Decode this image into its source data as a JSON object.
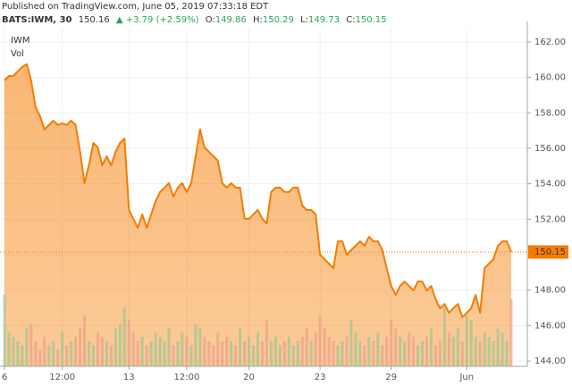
{
  "header": {
    "published": "Published on TradingView.com, June 05, 2019 07:33:18 EDT",
    "symbol": "BATS:IWM, 30",
    "last": "150.16",
    "change": "▲ +3.79 (+2.59%)",
    "open_label": "O:",
    "open": "149.86",
    "high_label": "H:",
    "high": "150.29",
    "low_label": "L:",
    "low": "149.73",
    "close_label": "C:",
    "close": "150.15"
  },
  "chart_data": {
    "type": "area",
    "categories": [
      "6",
      null,
      null,
      null,
      null,
      null,
      null,
      null,
      null,
      null,
      null,
      null,
      null,
      "12:00",
      null,
      null,
      null,
      null,
      null,
      null,
      null,
      null,
      null,
      null,
      null,
      null,
      null,
      null,
      "13",
      null,
      null,
      null,
      null,
      null,
      null,
      null,
      null,
      null,
      null,
      null,
      null,
      "12:00",
      null,
      null,
      null,
      null,
      null,
      null,
      null,
      null,
      null,
      null,
      null,
      null,
      null,
      "20",
      null,
      null,
      null,
      null,
      null,
      null,
      null,
      null,
      null,
      null,
      null,
      null,
      null,
      null,
      null,
      "23",
      null,
      null,
      null,
      null,
      null,
      null,
      null,
      null,
      null,
      null,
      null,
      null,
      null,
      null,
      null,
      "29",
      null,
      null,
      null,
      null,
      null,
      null,
      null,
      null,
      null,
      null,
      null,
      null,
      null,
      null,
      null,
      null,
      "Jun",
      null,
      null,
      null,
      null,
      null,
      null,
      null,
      null,
      null,
      null
    ],
    "series": [
      {
        "name": "IWM",
        "color": "#f57c00",
        "values": [
          159.83,
          160.08,
          160.08,
          160.34,
          160.59,
          160.74,
          159.83,
          158.32,
          157.81,
          157.06,
          157.31,
          157.56,
          157.31,
          157.41,
          157.31,
          157.56,
          157.31,
          155.8,
          154.03,
          155.04,
          156.3,
          156.05,
          155.04,
          155.55,
          155.04,
          155.8,
          156.3,
          156.55,
          152.52,
          152.02,
          151.51,
          152.27,
          151.51,
          152.27,
          153.02,
          153.53,
          153.78,
          154.03,
          153.28,
          153.78,
          154.03,
          153.53,
          154.03,
          155.55,
          157.06,
          156.05,
          155.8,
          155.55,
          155.3,
          154.03,
          153.78,
          154.03,
          153.78,
          153.78,
          152.02,
          152.02,
          152.27,
          152.52,
          152.02,
          151.76,
          153.53,
          153.78,
          153.78,
          153.53,
          153.53,
          153.78,
          153.78,
          152.77,
          152.52,
          152.52,
          152.27,
          150.0,
          149.75,
          149.49,
          149.24,
          150.75,
          150.75,
          150.0,
          150.25,
          150.5,
          150.75,
          150.5,
          151.01,
          150.75,
          150.75,
          150.25,
          149.24,
          148.23,
          147.73,
          148.23,
          148.49,
          148.23,
          147.98,
          148.49,
          148.49,
          147.98,
          148.23,
          147.48,
          146.97,
          147.22,
          146.72,
          146.97,
          147.22,
          146.47,
          146.72,
          146.97,
          147.73,
          146.72,
          149.24,
          149.49,
          149.75,
          150.5,
          150.75,
          150.75,
          150.15
        ]
      },
      {
        "name": "Vol",
        "axis": "y2",
        "up_color": "#8fc48f",
        "down_color": "#ea9a86",
        "values": [
          85,
          40,
          35,
          30,
          25,
          45,
          50,
          30,
          20,
          35,
          25,
          30,
          20,
          40,
          25,
          30,
          35,
          45,
          60,
          30,
          25,
          40,
          35,
          30,
          25,
          45,
          50,
          70,
          55,
          40,
          30,
          35,
          25,
          30,
          40,
          35,
          30,
          45,
          25,
          30,
          40,
          35,
          25,
          50,
          45,
          35,
          30,
          25,
          40,
          30,
          35,
          30,
          25,
          45,
          30,
          35,
          25,
          40,
          30,
          55,
          30,
          35,
          25,
          30,
          35,
          25,
          30,
          35,
          45,
          30,
          40,
          60,
          45,
          35,
          30,
          25,
          30,
          35,
          55,
          40,
          30,
          25,
          35,
          30,
          40,
          25,
          35,
          55,
          45,
          35,
          30,
          40,
          35,
          25,
          30,
          35,
          45,
          25,
          30,
          70,
          40,
          35,
          45,
          30,
          60,
          55,
          35,
          30,
          40,
          35,
          30,
          45,
          40,
          30,
          80
        ]
      }
    ],
    "ylim": [
      143.7,
      162.75
    ],
    "yticks": [
      {
        "value": 144,
        "label": "144.00"
      },
      {
        "value": 146,
        "label": "146.00"
      },
      {
        "value": 148,
        "label": "148.00"
      },
      {
        "value": 150,
        "label": "150.00"
      },
      {
        "value": 152,
        "label": "152.00"
      },
      {
        "value": 154,
        "label": "154.00"
      },
      {
        "value": 156,
        "label": "156.00"
      },
      {
        "value": 158,
        "label": "158.00"
      },
      {
        "value": 160,
        "label": "160.00"
      },
      {
        "value": 162,
        "label": "162.00"
      }
    ],
    "y2lim": [
      0,
      400
    ],
    "grid": true
  }
}
